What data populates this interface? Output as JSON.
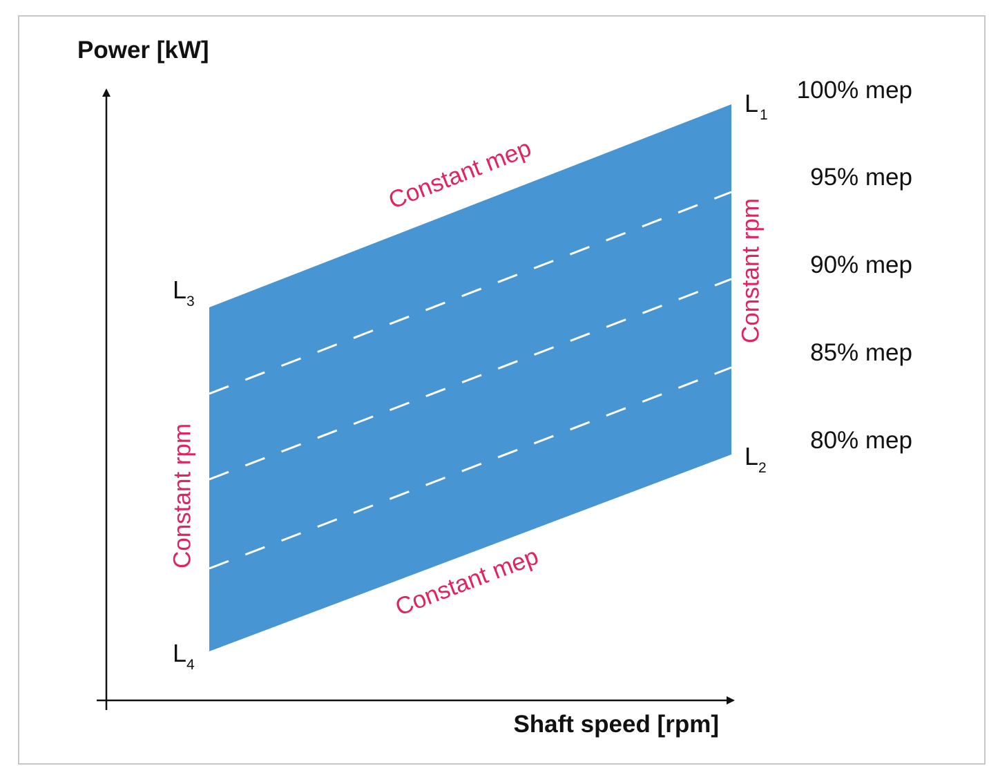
{
  "axes": {
    "y_label": "Power [kW]",
    "x_label": "Shaft speed [rpm]"
  },
  "corners": [
    {
      "letter": "L",
      "sub": "1"
    },
    {
      "letter": "L",
      "sub": "2"
    },
    {
      "letter": "L",
      "sub": "3"
    },
    {
      "letter": "L",
      "sub": "4"
    }
  ],
  "mep_levels": [
    {
      "label": "100% mep"
    },
    {
      "label": "95% mep"
    },
    {
      "label": "90% mep"
    },
    {
      "label": "85% mep"
    },
    {
      "label": "80% mep"
    }
  ],
  "annotations": {
    "top_edge": "Constant mep",
    "bottom_edge": "Constant mep",
    "right_edge": "Constant rpm",
    "left_edge": "Constant rpm"
  },
  "colors": {
    "region_fill": "#4795d2",
    "dashed_lines": "#ffffff",
    "annotation_text": "#e0245e",
    "axis": "#111111",
    "frame_border": "#c8c8c8"
  }
}
